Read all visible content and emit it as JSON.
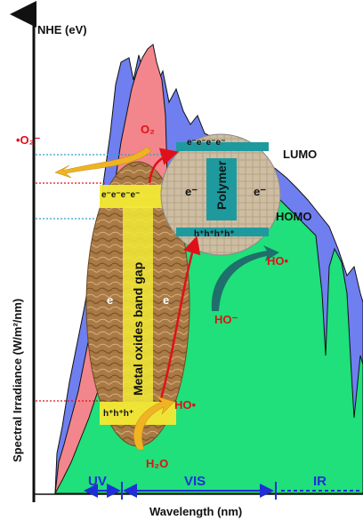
{
  "y_axis": {
    "top_label": "NHE (eV)",
    "title": "Spectral Irradiance (W/m²/nm)"
  },
  "x_axis": {
    "title": "Wavelength (nm)",
    "regions": [
      "UV",
      "VIS",
      "IR"
    ]
  },
  "polymer": {
    "label": "Polymer",
    "lumo": "LUMO",
    "homo": "HOMO",
    "electrons": "e⁻",
    "holes": "h⁺"
  },
  "metal_oxide": {
    "label": "Metal oxides band gap",
    "electron": "e"
  },
  "species": {
    "o2": "O₂",
    "superoxide": "•O₂⁻",
    "hydroxyl_radical": "HO•",
    "hydroxide": "HO⁻",
    "water": "H₂O",
    "electron_minus": "e⁻"
  },
  "colors": {
    "irradiance_outer": "#6f7ff0",
    "irradiance_uv": "#f2868c",
    "irradiance_inner": "#1fe07a",
    "polymer_teal": "#1e9a9e",
    "oxide_brown": "#b08350",
    "band_yellow": "#f2ea36",
    "arrow_orange": "#f0b323",
    "arrow_teal": "#1f6f6c",
    "arrow_red": "#e0101a",
    "region_blue": "#1f2fd6"
  }
}
